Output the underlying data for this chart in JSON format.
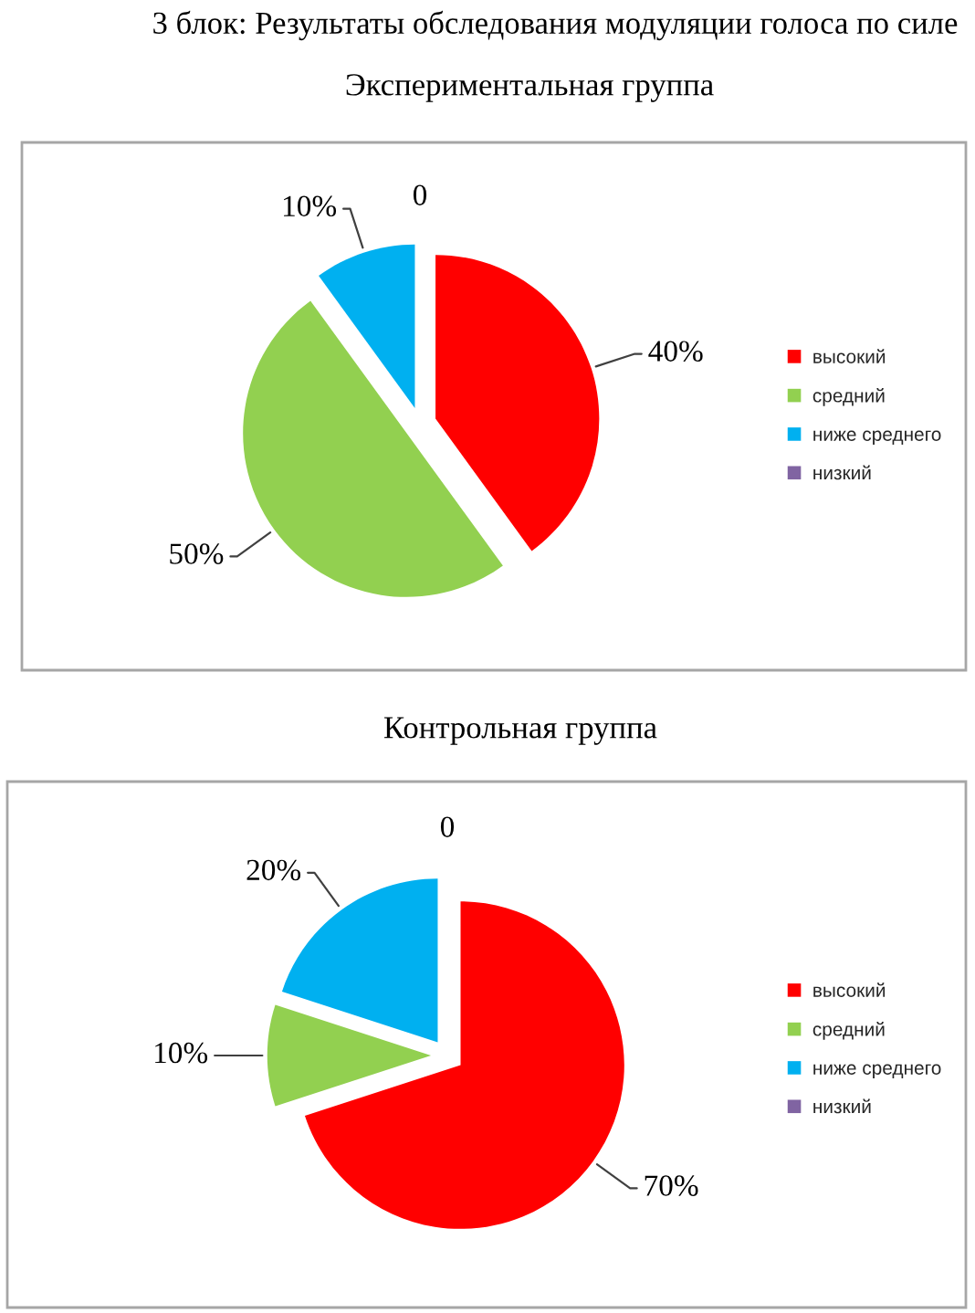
{
  "chart_data": [
    {
      "type": "pie",
      "title": "Экспериментальная группа",
      "annotations": [
        "3 блок: Результаты обследования модуляции голоса по силе"
      ],
      "categories": [
        "высокий",
        "средний",
        "ниже среднего",
        "низкий"
      ],
      "values": [
        40,
        50,
        10,
        0
      ],
      "colors": [
        "#ff0000",
        "#92d050",
        "#00b0f0",
        "#8064a2"
      ],
      "value_labels": [
        "40%",
        "50%",
        "10%",
        "0"
      ],
      "legend": "right"
    },
    {
      "type": "pie",
      "title": "Контрольная группа",
      "categories": [
        "высокий",
        "средний",
        "ниже среднего",
        "низкий"
      ],
      "values": [
        70,
        10,
        20,
        0
      ],
      "colors": [
        "#ff0000",
        "#92d050",
        "#00b0f0",
        "#8064a2"
      ],
      "value_labels": [
        "70%",
        "10%",
        "20%",
        "0"
      ],
      "legend": "right"
    }
  ]
}
